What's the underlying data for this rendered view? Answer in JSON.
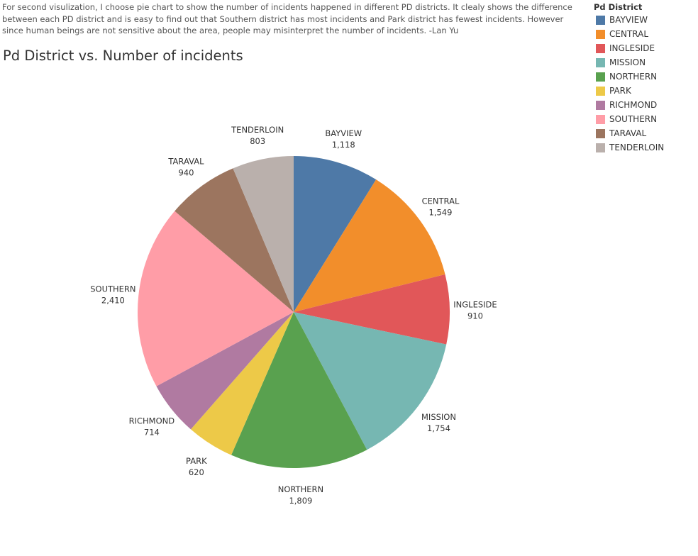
{
  "caption": "For second visulization, I choose pie chart to show the number of incidents happened in different PD districts. It clealy shows the difference between each PD district and is easy to find out that Southern district has  most incidents and Park district has fewest incidents. However since human beings are not sensitive about the area, people may misinterpret the number of incidents. -Lan Yu",
  "chart_data": {
    "type": "pie",
    "title": "Pd District vs. Number of incidents",
    "legend_title": "Pd District",
    "legend_position": "top-right",
    "start_angle_deg": 0,
    "direction": "clockwise",
    "slices": [
      {
        "label": "BAYVIEW",
        "value": 1118,
        "value_label": "1,118",
        "color": "#4e79a7"
      },
      {
        "label": "CENTRAL",
        "value": 1549,
        "value_label": "1,549",
        "color": "#f28e2b"
      },
      {
        "label": "INGLESIDE",
        "value": 910,
        "value_label": "910",
        "color": "#e15759"
      },
      {
        "label": "MISSION",
        "value": 1754,
        "value_label": "1,754",
        "color": "#76b7b2"
      },
      {
        "label": "NORTHERN",
        "value": 1809,
        "value_label": "1,809",
        "color": "#59a14f"
      },
      {
        "label": "PARK",
        "value": 620,
        "value_label": "620",
        "color": "#edc948"
      },
      {
        "label": "RICHMOND",
        "value": 714,
        "value_label": "714",
        "color": "#b07aa1"
      },
      {
        "label": "SOUTHERN",
        "value": 2410,
        "value_label": "2,410",
        "color": "#ff9da7"
      },
      {
        "label": "TARAVAL",
        "value": 940,
        "value_label": "940",
        "color": "#9c755f"
      },
      {
        "label": "TENDERLOIN",
        "value": 803,
        "value_label": "803",
        "color": "#bab0ac"
      }
    ]
  }
}
